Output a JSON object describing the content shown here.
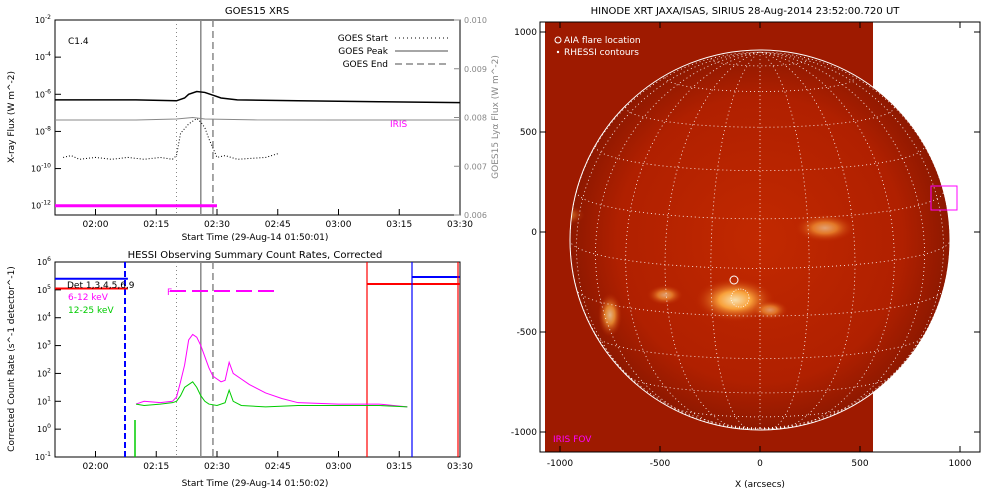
{
  "chart_data": [
    {
      "type": "line",
      "title": "GOES15 XRS",
      "xlabel": "Start Time (29-Aug-14 01:50:01)",
      "ylabel": "X-ray Flux (W m^-2)",
      "ylabel_right": "GOES15 Lyα Flux (W m^-2)",
      "x_ticks": [
        "02:00",
        "02:15",
        "02:30",
        "02:45",
        "03:00",
        "03:15",
        "03:30"
      ],
      "y_ticks": [
        "10^-2",
        "10^-4",
        "10^-6",
        "10^-8",
        "10^-10",
        "10^-12"
      ],
      "y_ticks_right": [
        "0.010",
        "0.009",
        "0.008",
        "0.007",
        "0.006"
      ],
      "ylim_log10": [
        -12.5,
        -2
      ],
      "ylim_right": [
        0.006,
        0.01
      ],
      "xlim_minutes_after_0150": [
        0,
        100
      ],
      "flare_class_label": "C1.4",
      "legend": [
        {
          "label": "GOES Start",
          "style": "dotted"
        },
        {
          "label": "GOES Peak",
          "style": "solid"
        },
        {
          "label": "GOES End",
          "style": "dashed"
        }
      ],
      "iris_label": "IRIS",
      "markers": {
        "start": "02:20",
        "peak": "02:26",
        "end": "02:29"
      },
      "series": [
        {
          "name": "long",
          "color": "#000000",
          "points": [
            [
              0,
              -6.3
            ],
            [
              20,
              -6.3
            ],
            [
              30,
              -6.35
            ],
            [
              32,
              -6.2
            ],
            [
              33,
              -6.0
            ],
            [
              35,
              -5.85
            ],
            [
              37,
              -5.9
            ],
            [
              39,
              -6.05
            ],
            [
              41,
              -6.2
            ],
            [
              45,
              -6.3
            ],
            [
              60,
              -6.35
            ],
            [
              80,
              -6.4
            ],
            [
              100,
              -6.45
            ]
          ]
        },
        {
          "name": "short",
          "color": "#000000",
          "style": "dotted",
          "points": [
            [
              2,
              -9.4
            ],
            [
              4,
              -9.3
            ],
            [
              6,
              -9.5
            ],
            [
              10,
              -9.4
            ],
            [
              14,
              -9.5
            ],
            [
              18,
              -9.4
            ],
            [
              22,
              -9.5
            ],
            [
              26,
              -9.4
            ],
            [
              29,
              -9.5
            ],
            [
              30,
              -9.3
            ],
            [
              31,
              -8.1
            ],
            [
              33,
              -7.6
            ],
            [
              35,
              -7.3
            ],
            [
              36,
              -7.5
            ],
            [
              37,
              -7.8
            ],
            [
              38,
              -8.4
            ],
            [
              39,
              -8.9
            ],
            [
              40,
              -9.4
            ],
            [
              42,
              -9.3
            ],
            [
              45,
              -9.5
            ],
            [
              52,
              -9.4
            ],
            [
              55,
              -9.2
            ]
          ]
        },
        {
          "name": "lya",
          "color": "#888888",
          "points": [
            [
              0,
              0.00795
            ],
            [
              20,
              0.00795
            ],
            [
              30,
              0.00797
            ],
            [
              34,
              0.008
            ],
            [
              37,
              0.00797
            ],
            [
              50,
              0.00795
            ],
            [
              70,
              0.00795
            ],
            [
              100,
              0.00795
            ]
          ]
        },
        {
          "name": "iris",
          "color": "#ff00ff",
          "points": [
            [
              0,
              -12
            ],
            [
              40,
              -12
            ]
          ]
        }
      ]
    },
    {
      "type": "line",
      "title": "HESSI Observing Summary Count Rates, Corrected",
      "xlabel": "Start Time (29-Aug-14 01:50:02)",
      "ylabel": "Corrected Count Rate (s^-1 detector^-1)",
      "x_ticks": [
        "02:00",
        "02:15",
        "02:30",
        "02:45",
        "03:00",
        "03:15",
        "03:30"
      ],
      "y_ticks": [
        "10^6",
        "10^5",
        "10^4",
        "10^3",
        "10^2",
        "10^1",
        "10^0",
        "10^-1"
      ],
      "ylim_log10": [
        -1,
        6
      ],
      "xlim_minutes_after_0150": [
        0,
        100
      ],
      "detectors_label": "Det 1,3,4,5,6,9",
      "flag_label": "F",
      "legend": [
        {
          "label": "6-12 keV",
          "color": "#ff00ff"
        },
        {
          "label": "12-25 keV",
          "color": "#00cc00"
        }
      ],
      "series": [
        {
          "name": "6-12 keV",
          "color": "#ff00ff",
          "points": [
            [
              20,
              0.9
            ],
            [
              22,
              1.0
            ],
            [
              26,
              0.95
            ],
            [
              29,
              1.0
            ],
            [
              30,
              1.15
            ],
            [
              31,
              1.7
            ],
            [
              32,
              2.3
            ],
            [
              33,
              3.2
            ],
            [
              34,
              3.4
            ],
            [
              35,
              3.3
            ],
            [
              36,
              3.0
            ],
            [
              37,
              2.6
            ],
            [
              38,
              2.2
            ],
            [
              39,
              1.9
            ],
            [
              40,
              1.8
            ],
            [
              41,
              1.7
            ],
            [
              42,
              1.75
            ],
            [
              43,
              2.4
            ],
            [
              44,
              2.0
            ],
            [
              46,
              1.8
            ],
            [
              48,
              1.6
            ],
            [
              52,
              1.3
            ],
            [
              56,
              1.1
            ],
            [
              60,
              0.95
            ],
            [
              70,
              0.9
            ],
            [
              80,
              0.9
            ],
            [
              87,
              0.8
            ]
          ]
        },
        {
          "name": "12-25 keV",
          "color": "#00cc00",
          "points": [
            [
              20,
              0.9
            ],
            [
              22,
              0.85
            ],
            [
              26,
              0.9
            ],
            [
              29,
              0.95
            ],
            [
              30,
              1.0
            ],
            [
              31,
              1.2
            ],
            [
              32,
              1.5
            ],
            [
              33,
              1.6
            ],
            [
              34,
              1.7
            ],
            [
              35,
              1.5
            ],
            [
              36,
              1.2
            ],
            [
              37,
              1.0
            ],
            [
              38,
              0.9
            ],
            [
              40,
              0.85
            ],
            [
              42,
              0.95
            ],
            [
              43,
              1.4
            ],
            [
              44,
              1.0
            ],
            [
              46,
              0.85
            ],
            [
              52,
              0.8
            ],
            [
              60,
              0.85
            ],
            [
              70,
              0.85
            ],
            [
              80,
              0.85
            ],
            [
              87,
              0.8
            ]
          ]
        },
        {
          "name": "blue-state",
          "color": "#0000ff",
          "points": [
            [
              0,
              5.4
            ],
            [
              18,
              5.4
            ]
          ]
        },
        {
          "name": "red-state",
          "color": "#ff0000",
          "points": [
            [
              0,
              5.05
            ],
            [
              18,
              5.05
            ]
          ]
        }
      ]
    },
    {
      "type": "heatmap",
      "title": "HINODE XRT JAXA/ISAS, SIRIUS 28-Aug-2014 23:52:00.720 UT",
      "xlabel": "X (arcsecs)",
      "ylabel": "",
      "x_ticks": [
        "-1000",
        "-500",
        "0",
        "500",
        "1000"
      ],
      "y_ticks": [
        "1000",
        "500",
        "0",
        "-500",
        "-1000"
      ],
      "xlim": [
        -1100,
        1100
      ],
      "ylim": [
        -1100,
        1050
      ],
      "legend": [
        {
          "label": "AIA flare location",
          "symbol": "circle"
        },
        {
          "label": "RHESSI contours",
          "symbol": "dot"
        }
      ],
      "iris_fov_label": "IRIS FOV",
      "iris_fov_center": [
        920,
        170
      ],
      "solar_radius_arcsec": 950
    }
  ],
  "colors": {
    "goes_long": "#000000",
    "goes_lya": "#888888",
    "iris": "#ff00ff",
    "hessi_low": "#ff00ff",
    "hessi_high": "#00cc00",
    "state_blue": "#0000ff",
    "state_red": "#ff0000",
    "xrt_background": "#9e1a00",
    "limb": "#ffffff"
  }
}
